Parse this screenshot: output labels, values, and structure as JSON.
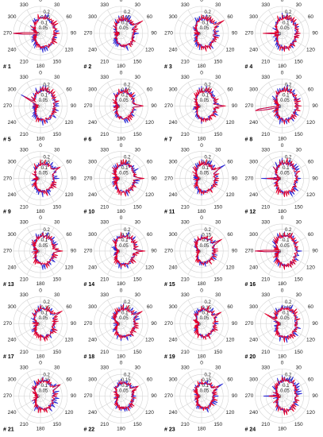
{
  "colors": {
    "series_a": "#2b2bd6",
    "series_b": "#e4002b",
    "grid": "#d4d4d4"
  },
  "chart_data": {
    "type": "polar-line",
    "layout": "6 rows x 4 columns of polar plots",
    "angle_ticks": [
      "0",
      "30",
      "60",
      "90",
      "120",
      "150",
      "180",
      "210",
      "240",
      "270",
      "300",
      "330"
    ],
    "angle_direction": "clockwise, 0 at top",
    "radial_range": [
      0,
      0.25
    ],
    "radial_ticks": [
      0.05,
      0.1,
      0.15,
      0.2
    ],
    "radial_tick_labels": [
      "0.05",
      "0.1",
      "0.15",
      "0.2"
    ],
    "grid": true,
    "series_colors": [
      "#2b2bd6",
      "#e4002b"
    ],
    "panels": [
      {
        "label": "# 1",
        "seed": 1,
        "scale": 1.0,
        "ext_angle": 270,
        "ext_len": 0.95
      },
      {
        "label": "# 2",
        "seed": 2,
        "scale": 0.9,
        "ext_angle": 60,
        "ext_len": 0.3
      },
      {
        "label": "# 3",
        "seed": 3,
        "scale": 0.95,
        "ext_angle": 60,
        "ext_len": 0.3
      },
      {
        "label": "# 4",
        "seed": 4,
        "scale": 1.0,
        "ext_angle": 270,
        "ext_len": 0.4
      },
      {
        "label": "# 5",
        "seed": 5,
        "scale": 1.0,
        "ext_angle": 300,
        "ext_len": 0.4
      },
      {
        "label": "# 6",
        "seed": 6,
        "scale": 0.9,
        "ext_angle": 90,
        "ext_len": 0.35
      },
      {
        "label": "# 7",
        "seed": 7,
        "scale": 0.95,
        "ext_angle": 90,
        "ext_len": 0.3
      },
      {
        "label": "# 8",
        "seed": 8,
        "scale": 1.0,
        "ext_angle": 260,
        "ext_len": 0.95
      },
      {
        "label": "# 9",
        "seed": 9,
        "scale": 0.95,
        "ext_angle": 60,
        "ext_len": 0.3
      },
      {
        "label": "# 10",
        "seed": 10,
        "scale": 0.95,
        "ext_angle": 90,
        "ext_len": 0.3
      },
      {
        "label": "# 11",
        "seed": 11,
        "scale": 0.95,
        "ext_angle": 60,
        "ext_len": 0.3
      },
      {
        "label": "# 12",
        "seed": 12,
        "scale": 1.0,
        "ext_angle": 270,
        "ext_len": 0.45
      },
      {
        "label": "# 13",
        "seed": 13,
        "scale": 0.95,
        "ext_angle": 90,
        "ext_len": 0.3
      },
      {
        "label": "# 14",
        "seed": 14,
        "scale": 0.95,
        "ext_angle": 90,
        "ext_len": 0.3
      },
      {
        "label": "# 15",
        "seed": 15,
        "scale": 0.85,
        "ext_angle": 60,
        "ext_len": 0.3
      },
      {
        "label": "# 16",
        "seed": 16,
        "scale": 1.0,
        "ext_angle": 270,
        "ext_len": 0.95
      },
      {
        "label": "# 17",
        "seed": 17,
        "scale": 0.95,
        "ext_angle": 60,
        "ext_len": 0.3
      },
      {
        "label": "# 18",
        "seed": 18,
        "scale": 0.95,
        "ext_angle": 60,
        "ext_len": 0.3
      },
      {
        "label": "# 19",
        "seed": 19,
        "scale": 0.9,
        "ext_angle": 60,
        "ext_len": 0.3
      },
      {
        "label": "# 20",
        "seed": 20,
        "scale": 1.0,
        "ext_angle": 300,
        "ext_len": 0.4
      },
      {
        "label": "# 21",
        "seed": 21,
        "scale": 0.95,
        "ext_angle": 60,
        "ext_len": 0.3
      },
      {
        "label": "# 22",
        "seed": 22,
        "scale": 0.85,
        "ext_angle": 60,
        "ext_len": 0.3
      },
      {
        "label": "# 23",
        "seed": 23,
        "scale": 0.85,
        "ext_angle": 60,
        "ext_len": 0.3
      },
      {
        "label": "# 24",
        "seed": 24,
        "scale": 1.0,
        "ext_angle": 270,
        "ext_len": 0.4
      }
    ]
  }
}
